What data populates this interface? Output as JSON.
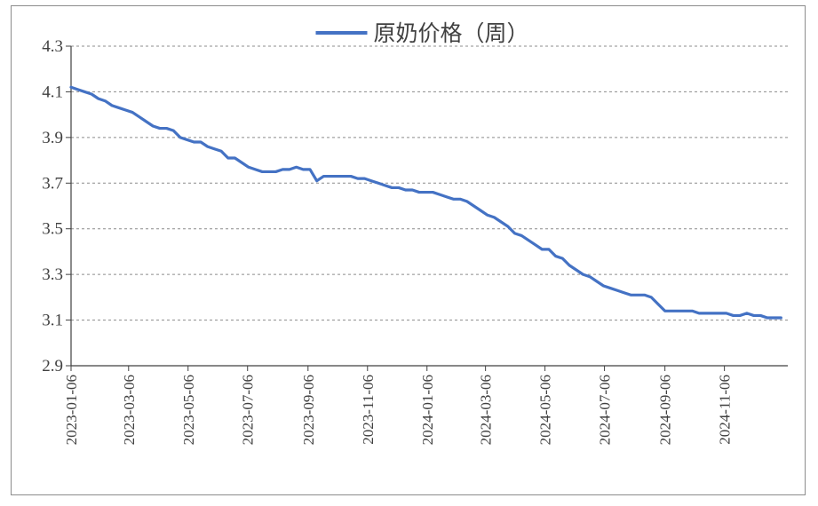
{
  "chart_data": {
    "type": "line",
    "title": "",
    "xlabel": "",
    "ylabel": "",
    "ylim": [
      2.9,
      4.3
    ],
    "yticks": [
      2.9,
      3.1,
      3.3,
      3.5,
      3.7,
      3.9,
      4.1,
      4.3
    ],
    "y_tick_labels": [
      "2.9",
      "3.1",
      "3.3",
      "3.5",
      "3.7",
      "3.9",
      "4.1",
      "4.3"
    ],
    "x_tick_labels": [
      "2023-01-06",
      "2023-03-06",
      "2023-05-06",
      "2023-07-06",
      "2023-09-06",
      "2023-11-06",
      "2024-01-06",
      "2024-03-06",
      "2024-05-06",
      "2024-07-06",
      "2024-09-06",
      "2024-11-06"
    ],
    "xlim": [
      "2023-01-06",
      "2025-01-10"
    ],
    "grid": "horizontal-dashed",
    "legend": "top-center",
    "series": [
      {
        "name": "原奶价格（周）",
        "color": "#4472C4",
        "points": [
          [
            "2023-01-06",
            4.12
          ],
          [
            "2023-01-13",
            4.11
          ],
          [
            "2023-01-20",
            4.1
          ],
          [
            "2023-01-27",
            4.09
          ],
          [
            "2023-02-03",
            4.07
          ],
          [
            "2023-02-10",
            4.06
          ],
          [
            "2023-02-17",
            4.04
          ],
          [
            "2023-02-24",
            4.03
          ],
          [
            "2023-03-03",
            4.02
          ],
          [
            "2023-03-10",
            4.01
          ],
          [
            "2023-03-17",
            3.99
          ],
          [
            "2023-03-24",
            3.97
          ],
          [
            "2023-03-31",
            3.95
          ],
          [
            "2023-04-07",
            3.94
          ],
          [
            "2023-04-14",
            3.94
          ],
          [
            "2023-04-21",
            3.93
          ],
          [
            "2023-04-28",
            3.9
          ],
          [
            "2023-05-05",
            3.89
          ],
          [
            "2023-05-12",
            3.88
          ],
          [
            "2023-05-19",
            3.88
          ],
          [
            "2023-05-26",
            3.86
          ],
          [
            "2023-06-02",
            3.85
          ],
          [
            "2023-06-09",
            3.84
          ],
          [
            "2023-06-16",
            3.81
          ],
          [
            "2023-06-23",
            3.81
          ],
          [
            "2023-06-30",
            3.79
          ],
          [
            "2023-07-07",
            3.77
          ],
          [
            "2023-07-14",
            3.76
          ],
          [
            "2023-07-21",
            3.75
          ],
          [
            "2023-07-28",
            3.75
          ],
          [
            "2023-08-04",
            3.75
          ],
          [
            "2023-08-11",
            3.76
          ],
          [
            "2023-08-18",
            3.76
          ],
          [
            "2023-08-25",
            3.77
          ],
          [
            "2023-09-01",
            3.76
          ],
          [
            "2023-09-08",
            3.76
          ],
          [
            "2023-09-15",
            3.71
          ],
          [
            "2023-09-22",
            3.73
          ],
          [
            "2023-09-29",
            3.73
          ],
          [
            "2023-10-06",
            3.73
          ],
          [
            "2023-10-13",
            3.73
          ],
          [
            "2023-10-20",
            3.73
          ],
          [
            "2023-10-27",
            3.72
          ],
          [
            "2023-11-03",
            3.72
          ],
          [
            "2023-11-10",
            3.71
          ],
          [
            "2023-11-17",
            3.7
          ],
          [
            "2023-11-24",
            3.69
          ],
          [
            "2023-12-01",
            3.68
          ],
          [
            "2023-12-08",
            3.68
          ],
          [
            "2023-12-15",
            3.67
          ],
          [
            "2023-12-22",
            3.67
          ],
          [
            "2023-12-29",
            3.66
          ],
          [
            "2024-01-05",
            3.66
          ],
          [
            "2024-01-12",
            3.66
          ],
          [
            "2024-01-19",
            3.65
          ],
          [
            "2024-01-26",
            3.64
          ],
          [
            "2024-02-02",
            3.63
          ],
          [
            "2024-02-09",
            3.63
          ],
          [
            "2024-02-16",
            3.62
          ],
          [
            "2024-02-23",
            3.6
          ],
          [
            "2024-03-01",
            3.58
          ],
          [
            "2024-03-08",
            3.56
          ],
          [
            "2024-03-15",
            3.55
          ],
          [
            "2024-03-22",
            3.53
          ],
          [
            "2024-03-29",
            3.51
          ],
          [
            "2024-04-05",
            3.48
          ],
          [
            "2024-04-12",
            3.47
          ],
          [
            "2024-04-19",
            3.45
          ],
          [
            "2024-04-26",
            3.43
          ],
          [
            "2024-05-03",
            3.41
          ],
          [
            "2024-05-10",
            3.41
          ],
          [
            "2024-05-17",
            3.38
          ],
          [
            "2024-05-24",
            3.37
          ],
          [
            "2024-05-31",
            3.34
          ],
          [
            "2024-06-07",
            3.32
          ],
          [
            "2024-06-14",
            3.3
          ],
          [
            "2024-06-21",
            3.29
          ],
          [
            "2024-06-28",
            3.27
          ],
          [
            "2024-07-05",
            3.25
          ],
          [
            "2024-07-12",
            3.24
          ],
          [
            "2024-07-19",
            3.23
          ],
          [
            "2024-07-26",
            3.22
          ],
          [
            "2024-08-02",
            3.21
          ],
          [
            "2024-08-09",
            3.21
          ],
          [
            "2024-08-16",
            3.21
          ],
          [
            "2024-08-23",
            3.2
          ],
          [
            "2024-08-30",
            3.17
          ],
          [
            "2024-09-06",
            3.14
          ],
          [
            "2024-09-13",
            3.14
          ],
          [
            "2024-09-20",
            3.14
          ],
          [
            "2024-09-27",
            3.14
          ],
          [
            "2024-10-04",
            3.14
          ],
          [
            "2024-10-11",
            3.13
          ],
          [
            "2024-10-18",
            3.13
          ],
          [
            "2024-10-25",
            3.13
          ],
          [
            "2024-11-01",
            3.13
          ],
          [
            "2024-11-08",
            3.13
          ],
          [
            "2024-11-15",
            3.12
          ],
          [
            "2024-11-22",
            3.12
          ],
          [
            "2024-11-29",
            3.13
          ],
          [
            "2024-12-06",
            3.12
          ],
          [
            "2024-12-13",
            3.12
          ],
          [
            "2024-12-20",
            3.11
          ],
          [
            "2024-12-27",
            3.11
          ],
          [
            "2025-01-03",
            3.11
          ]
        ]
      }
    ]
  }
}
